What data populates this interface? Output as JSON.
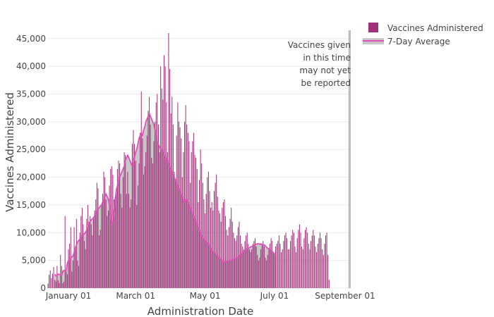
{
  "chart_data": {
    "type": "bar",
    "title": "",
    "xlabel": "Administration Date",
    "ylabel": "Vaccines Administered",
    "x_range": [
      "2020-12-14",
      "2021-09-06"
    ],
    "ylim": [
      0,
      46500
    ],
    "yticks": [
      0,
      5000,
      10000,
      15000,
      20000,
      25000,
      30000,
      35000,
      40000,
      45000
    ],
    "ytick_labels": [
      "0",
      "5,000",
      "10,000",
      "15,000",
      "20,000",
      "25,000",
      "30,000",
      "35,000",
      "40,000",
      "45,000"
    ],
    "xticks": [
      {
        "date": "2021-01-01",
        "label": "January 01"
      },
      {
        "date": "2021-03-01",
        "label": "March 01"
      },
      {
        "date": "2021-05-01",
        "label": "May 01"
      },
      {
        "date": "2021-07-01",
        "label": "July 01"
      },
      {
        "date": "2021-09-01",
        "label": "September 01"
      }
    ],
    "grid": true,
    "legend_position": "top-right",
    "legend": [
      {
        "name": "Vaccines Administered",
        "symbol": "square"
      },
      {
        "name": "7-Day Average",
        "symbol": "line"
      }
    ],
    "series": [
      {
        "name": "Vaccines Administered",
        "type": "bar",
        "color": "#a0307a",
        "start_date": "2020-12-14",
        "values": [
          800,
          2400,
          3200,
          1800,
          2600,
          3800,
          1500,
          1200,
          4000,
          1400,
          900,
          6000,
          4000,
          900,
          1200,
          13000,
          3000,
          2500,
          7000,
          8000,
          11000,
          3000,
          5000,
          11000,
          7000,
          12500,
          5000,
          4000,
          10000,
          13000,
          14500,
          11500,
          8500,
          7000,
          12500,
          15000,
          12000,
          13000,
          11500,
          9500,
          12500,
          14000,
          16000,
          19000,
          18000,
          9500,
          10500,
          15000,
          17000,
          21000,
          20000,
          16000,
          13000,
          14000,
          18500,
          21500,
          22000,
          20500,
          16000,
          15500,
          18000,
          21500,
          23000,
          22500,
          17000,
          14500,
          20000,
          24500,
          24000,
          17000,
          21000,
          17000,
          14500,
          16000,
          26000,
          28500,
          26000,
          23000,
          15000,
          18500,
          22500,
          28000,
          35500,
          27000,
          20500,
          22000,
          24500,
          27500,
          32000,
          34500,
          29500,
          23500,
          22500,
          26500,
          30000,
          33500,
          35000,
          29500,
          24500,
          40000,
          36000,
          34000,
          42000,
          40000,
          33500,
          24500,
          46000,
          39500,
          31500,
          34500,
          29500,
          21000,
          19500,
          27500,
          33500,
          30000,
          29000,
          27000,
          20000,
          24500,
          30000,
          33000,
          29500,
          28000,
          26500,
          19000,
          24500,
          26500,
          28000,
          24000,
          23500,
          21500,
          15500,
          19500,
          25000,
          22500,
          19000,
          16000,
          13500,
          17000,
          20000,
          21000,
          17500,
          14500,
          15500,
          14000,
          17500,
          19000,
          20500,
          16500,
          14000,
          13500,
          12000,
          14500,
          15500,
          16000,
          13000,
          10500,
          9500,
          11000,
          12500,
          14500,
          12000,
          10000,
          9000,
          8500,
          9500,
          11000,
          12000,
          9500,
          8000,
          7500,
          7000,
          8500,
          9500,
          10000,
          8000,
          7000,
          6500,
          7000,
          8000,
          8500,
          9000,
          7500,
          6000,
          5000,
          5500,
          7000,
          8000,
          8500,
          7500,
          5500,
          5000,
          6000,
          7000,
          8000,
          9000,
          8500,
          6500,
          6000,
          7500,
          8000,
          8500,
          9500,
          8000,
          6500,
          7000,
          8500,
          9500,
          10000,
          9000,
          7000,
          7000,
          8500,
          9500,
          10500,
          10000,
          7500,
          6500,
          9000,
          10500,
          11500,
          10000,
          7500,
          7000,
          9000,
          10500,
          11000,
          10000,
          8000,
          7000,
          8500,
          9500,
          10500,
          9500,
          7500,
          6500,
          8000,
          9000,
          10000,
          9000,
          7000,
          6000,
          8000,
          9500,
          10000,
          6000,
          1500
        ]
      },
      {
        "name": "7-Day Average",
        "type": "line",
        "color": "#e050b8",
        "area_color": "#c8c8c8",
        "start_date": "2020-12-20",
        "values": [
          2500,
          2200,
          2300,
          2500,
          2500,
          2400,
          2300,
          3000,
          3200,
          3000,
          3200,
          4500,
          5000,
          5200,
          5500,
          5600,
          5800,
          6500,
          7200,
          7800,
          8300,
          8600,
          8800,
          9200,
          9500,
          9700,
          9800,
          10000,
          10500,
          11000,
          11500,
          12000,
          12300,
          12500,
          12700,
          13000,
          13500,
          14000,
          14200,
          14500,
          14800,
          15000,
          15500,
          16000,
          16500,
          17000,
          16500,
          16000,
          15000,
          13000,
          11500,
          12000,
          14000,
          16000,
          17500,
          18500,
          19500,
          20000,
          20500,
          21000,
          21500,
          22000,
          23000,
          23500,
          24000,
          23500,
          23000,
          22500,
          22000,
          22500,
          23500,
          24500,
          25000,
          26000,
          27000,
          27500,
          28000,
          27500,
          28500,
          29000,
          30000,
          30500,
          31000,
          31500,
          31000,
          30500,
          30000,
          29500,
          28500,
          27500,
          26500,
          26000,
          25500,
          25000,
          25000,
          24500,
          24000,
          23500,
          23500,
          23000,
          22500,
          22000,
          21500,
          21000,
          20500,
          20000,
          19500,
          19000,
          18500,
          18000,
          17500,
          17000,
          16500,
          16000,
          15500,
          16000,
          16000,
          15500,
          15000,
          14500,
          14000,
          13500,
          13000,
          12500,
          12000,
          11500,
          11000,
          10500,
          10000,
          9500,
          9000,
          8800,
          8600,
          8400,
          8200,
          8000,
          7600,
          7200,
          6800,
          6600,
          6400,
          6200,
          6000,
          5800,
          5600,
          5400,
          5200,
          5000,
          4800,
          4700,
          4700,
          4800,
          4800,
          4900,
          5000,
          5000,
          5100,
          5200,
          5300,
          5400,
          5500,
          5600,
          5800,
          6000,
          6200,
          6400,
          6600,
          6800,
          7000,
          7100,
          7200,
          7300,
          7400,
          7500,
          7600,
          7700,
          7800,
          7900,
          8000,
          8000,
          7900,
          8000,
          7800,
          7700,
          7800,
          7600,
          7400,
          7200,
          7100,
          7000,
          6800,
          6600,
          6400,
          6200,
          6000
        ]
      }
    ],
    "annotation": {
      "lines": [
        "Vaccines given",
        "in this time",
        "may not yet",
        "be reported"
      ],
      "shaded_from": "2021-09-04",
      "shaded_to": "2021-09-06",
      "shade_color": "#bdbdbd"
    },
    "colors": {
      "bar": "#a0307a",
      "line": "#e050b8",
      "area": "#c8c8c8",
      "grid": "#ebebeb"
    }
  }
}
